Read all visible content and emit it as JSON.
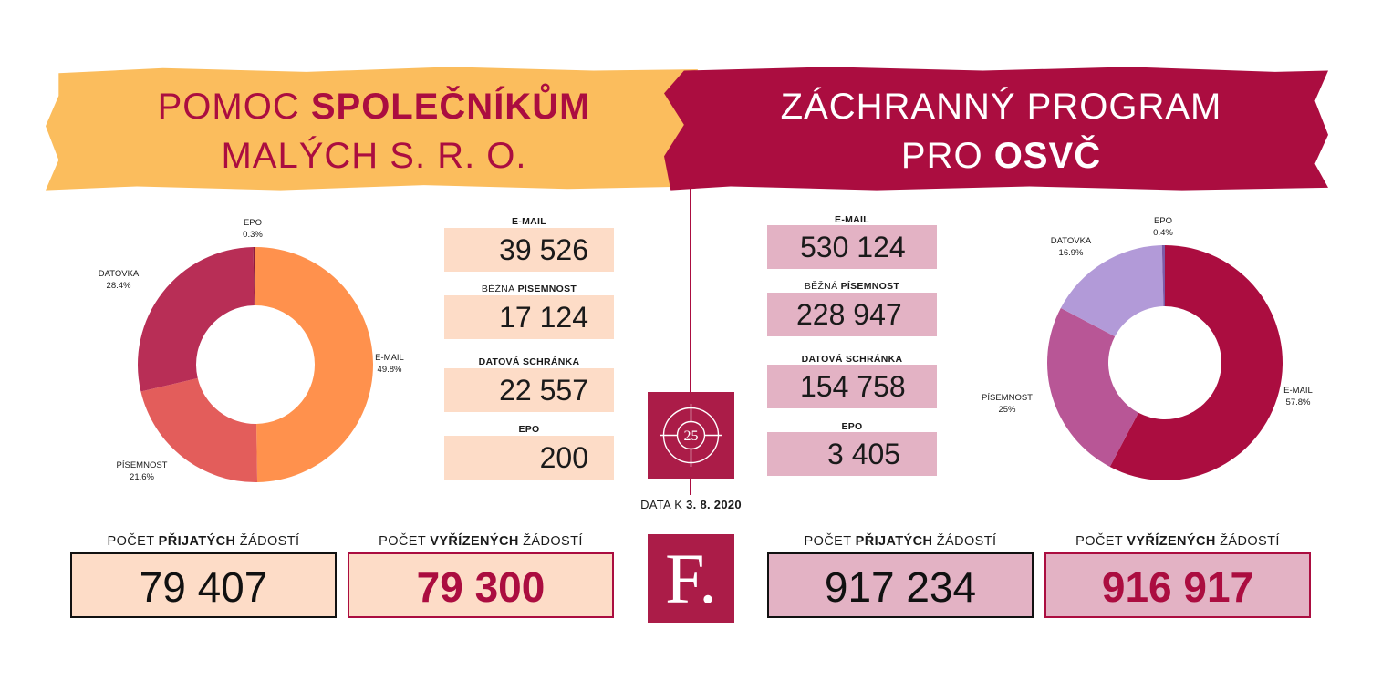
{
  "left": {
    "title_line1_prefix": "POMOC ",
    "title_line1_bold": "SPOLEČNÍKŮM",
    "title_line2": "MALÝCH S. R. O.",
    "stats": [
      {
        "label_plain": "",
        "label_bold": "E-MAIL",
        "value": "39 526"
      },
      {
        "label_plain": "BĚŽNÁ ",
        "label_bold": "PÍSEMNOST",
        "value": "17 124"
      },
      {
        "label_plain": "",
        "label_bold": "DATOVÁ SCHRÁNKA",
        "value": "22 557"
      },
      {
        "label_plain": "",
        "label_bold": "EPO",
        "value": "200"
      }
    ],
    "received_label_pre": "POČET ",
    "received_label_bold": "PŘIJATÝCH",
    "received_label_post": " ŽÁDOSTÍ",
    "received_value": "79 407",
    "processed_label_pre": "POČET ",
    "processed_label_bold": "VYŘÍZENÝCH",
    "processed_label_post": " ŽÁDOSTÍ",
    "processed_value": "79 300"
  },
  "right": {
    "title_line1": "ZÁCHRANNÝ PROGRAM",
    "title_line2_prefix": "PRO ",
    "title_line2_bold": "OSVČ",
    "stats": [
      {
        "label_plain": "",
        "label_bold": "E-MAIL",
        "value": "530 124"
      },
      {
        "label_plain": "BĚŽNÁ ",
        "label_bold": "PÍSEMNOST",
        "value": "228 947"
      },
      {
        "label_plain": "",
        "label_bold": "DATOVÁ SCHRÁNKA",
        "value": "154 758"
      },
      {
        "label_plain": "",
        "label_bold": "EPO",
        "value": "3 405"
      }
    ],
    "received_label_pre": "POČET ",
    "received_label_bold": "PŘIJATÝCH",
    "received_label_post": " ŽÁDOSTÍ",
    "received_value": "917 234",
    "processed_label_pre": "POČET ",
    "processed_label_bold": "VYŘÍZENÝCH",
    "processed_label_post": " ŽÁDOSTÍ",
    "processed_value": "916 917"
  },
  "center": {
    "date_prefix": "DATA K ",
    "date_bold": "3. 8. 2020",
    "logo_anniversary": "25",
    "logo_letter": "F."
  },
  "colors": {
    "brand": "#ab0d40",
    "banner_left": "#fbbd5d",
    "peach": "#fddcc7",
    "pink": "#e3b2c4"
  },
  "chart_data": [
    {
      "type": "pie",
      "donut": true,
      "slices": [
        {
          "label": "E-MAIL",
          "value": 49.8,
          "display": "49.8%",
          "color": "#ff914d"
        },
        {
          "label": "PÍSEMNOST",
          "value": 21.6,
          "display": "21.6%",
          "color": "#e35d5b"
        },
        {
          "label": "DATOVKA",
          "value": 28.4,
          "display": "28.4%",
          "color": "#b82e56"
        },
        {
          "label": "EPO",
          "value": 0.3,
          "display": "0.3%",
          "color": "#8c1b3c"
        }
      ]
    },
    {
      "type": "pie",
      "donut": true,
      "slices": [
        {
          "label": "E-MAIL",
          "value": 57.8,
          "display": "57.8%",
          "color": "#ab0d40"
        },
        {
          "label": "PÍSEMNOST",
          "value": 25,
          "display": "25%",
          "color": "#b85696"
        },
        {
          "label": "DATOVKA",
          "value": 16.9,
          "display": "16.9%",
          "color": "#b29ad8"
        },
        {
          "label": "EPO",
          "value": 0.4,
          "display": "0.4%",
          "color": "#7d5aa6"
        }
      ]
    }
  ]
}
